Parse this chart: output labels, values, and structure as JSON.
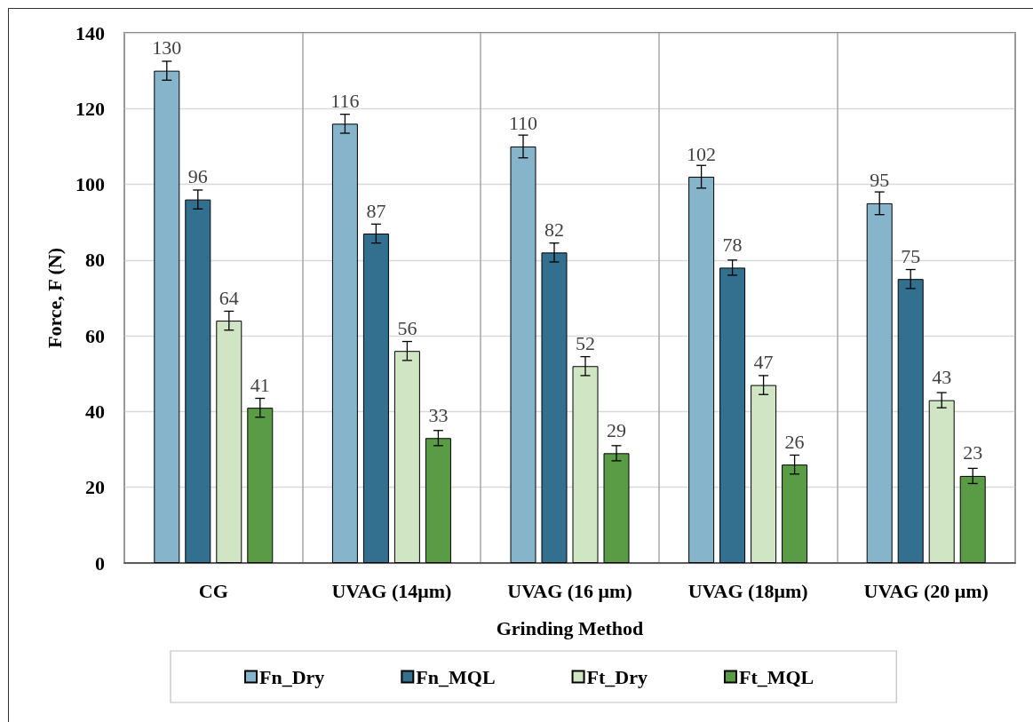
{
  "chart_data": {
    "type": "bar",
    "xlabel": "Grinding Method",
    "ylabel": "Force, F (N)",
    "categories": [
      "CG",
      "UVAG (14μm)",
      "UVAG (16 μm)",
      "UVAG (18μm)",
      "UVAG (20 μm)"
    ],
    "series": [
      {
        "name": "Fn_Dry",
        "color": "#86b4cb",
        "values": [
          130,
          116,
          110,
          102,
          95
        ],
        "errors": [
          2.5,
          2.5,
          3,
          3,
          3
        ]
      },
      {
        "name": "Fn_MQL",
        "color": "#33708f",
        "values": [
          96,
          87,
          82,
          78,
          75
        ],
        "errors": [
          2.5,
          2.5,
          2.5,
          2,
          2.5
        ]
      },
      {
        "name": "Ft_Dry",
        "color": "#cfe5c3",
        "values": [
          64,
          56,
          52,
          47,
          43
        ],
        "errors": [
          2.5,
          2.5,
          2.5,
          2.5,
          2
        ]
      },
      {
        "name": "Ft_MQL",
        "color": "#5a9c45",
        "values": [
          41,
          33,
          29,
          26,
          23
        ],
        "errors": [
          2.5,
          2,
          2,
          2.5,
          2
        ]
      }
    ],
    "ylim": [
      0,
      140
    ],
    "yticks": [
      0,
      20,
      40,
      60,
      80,
      100,
      120,
      140
    ],
    "grid": true,
    "legend": "bottom",
    "data_labels": true
  }
}
